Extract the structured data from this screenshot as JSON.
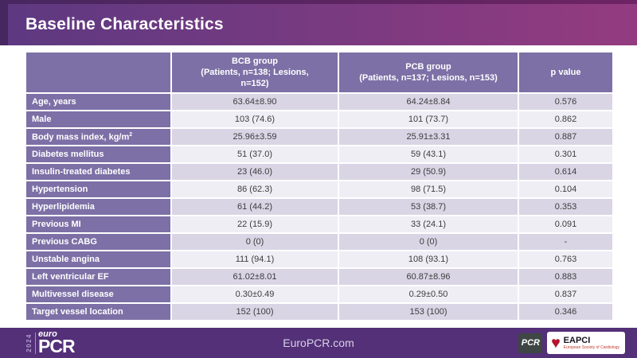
{
  "slide": {
    "title": "Baseline Characteristics"
  },
  "colors": {
    "header_gradient_left": "#5d3981",
    "header_gradient_right": "#943b80",
    "header_border": "#472760",
    "table_purple": "#7c70a6",
    "row_lavender": "#d9d5e5",
    "row_light": "#efeef5",
    "footer_purple": "#533078",
    "eapci_red": "#b5122b"
  },
  "table": {
    "header": {
      "col1": "",
      "col2_line1": "BCB group",
      "col2_line2": "(Patients, n=138; Lesions, n=152)",
      "col3_line1": "PCB group",
      "col3_line2": "(Patients, n=137; Lesions, n=153)",
      "col4": "p value"
    },
    "rows": [
      {
        "label": "Age, years",
        "bcb": "63.64±8.90",
        "pcb": "64.24±8.84",
        "p": "0.576"
      },
      {
        "label": "Male",
        "bcb": "103 (74.6)",
        "pcb": "101 (73.7)",
        "p": "0.862"
      },
      {
        "label": "Body mass index, kg/m",
        "label_sup": "2",
        "bcb": "25.96±3.59",
        "pcb": "25.91±3.31",
        "p": "0.887"
      },
      {
        "label": "Diabetes mellitus",
        "bcb": "51 (37.0)",
        "pcb": "59 (43.1)",
        "p": "0.301"
      },
      {
        "label": "Insulin-treated diabetes",
        "bcb": "23 (46.0)",
        "pcb": "29 (50.9)",
        "p": "0.614"
      },
      {
        "label": "Hypertension",
        "bcb": "86 (62.3)",
        "pcb": "98 (71.5)",
        "p": "0.104"
      },
      {
        "label": "Hyperlipidemia",
        "bcb": "61 (44.2)",
        "pcb": "53 (38.7)",
        "p": "0.353"
      },
      {
        "label": "Previous MI",
        "bcb": "22 (15.9)",
        "pcb": "33 (24.1)",
        "p": "0.091"
      },
      {
        "label": "Previous CABG",
        "bcb": "0 (0)",
        "pcb": "0 (0)",
        "p": "-"
      },
      {
        "label": "Unstable angina",
        "bcb": "111 (94.1)",
        "pcb": "108 (93.1)",
        "p": "0.763"
      },
      {
        "label": "Left ventricular EF",
        "bcb": "61.02±8.01",
        "pcb": "60.87±8.96",
        "p": "0.883"
      },
      {
        "label": "Multivessel disease",
        "bcb": "0.30±0.49",
        "pcb": "0.29±0.50",
        "p": "0.837"
      },
      {
        "label": "Target vessel location",
        "bcb": "152 (100)",
        "pcb": "153 (100)",
        "p": "0.346"
      }
    ]
  },
  "footer": {
    "logo": {
      "year": "2024",
      "euro": "euro",
      "pcr": "PCR"
    },
    "website": "EuroPCR.com",
    "pcr_badge": "PCR",
    "eapci": {
      "name": "EAPCI",
      "subtext": "European Society of Cardiology",
      "heart_icon": "heart"
    }
  }
}
